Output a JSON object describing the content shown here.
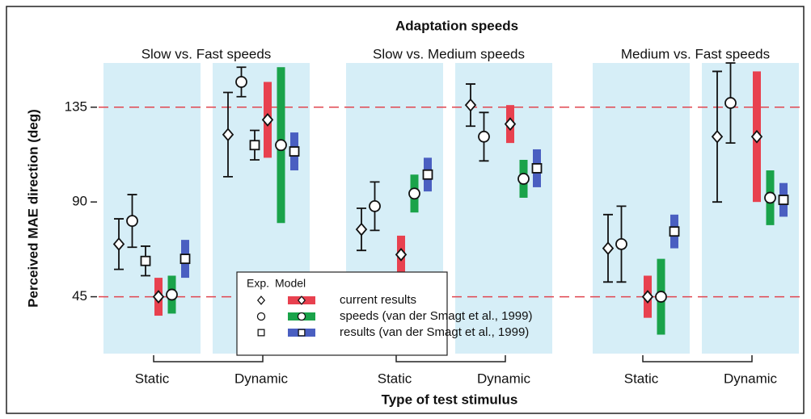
{
  "chart_data": {
    "type": "dot-range",
    "title": "Adaptation speeds",
    "groups": [
      "Slow vs. Fast speeds",
      "Slow vs. Medium speeds",
      "Medium vs. Fast speeds"
    ],
    "conditions": [
      "Static",
      "Dynamic"
    ],
    "y_label": "Perceived MAE direction (deg)",
    "x_label": "Type of test stimulus",
    "ylim": [
      18,
      156
    ],
    "yticks": [
      45,
      90,
      135
    ],
    "reference_lines": [
      45,
      135
    ],
    "reference_color": "#e0454f",
    "panel_color": "#d6eef7",
    "legend_headers": [
      "Exp.",
      "Model"
    ],
    "series": [
      {
        "name": "current results",
        "marker": "diamond",
        "color": "#e8414f",
        "exp": {
          "values": [
            70,
            122,
            77,
            136,
            68,
            121
          ],
          "errors": [
            12,
            20,
            10,
            10,
            16,
            31
          ]
        },
        "model": {
          "values": [
            45,
            129,
            65,
            127,
            45,
            121
          ],
          "errors": [
            9,
            18,
            9,
            9,
            10,
            31
          ]
        }
      },
      {
        "name": "speeds (van der Smagt et al., 1999)",
        "marker": "circle",
        "color": "#1aa34a",
        "exp": {
          "values": [
            81,
            147,
            88,
            121,
            70,
            137
          ],
          "errors": [
            12.5,
            7,
            11.5,
            11.5,
            18,
            19
          ]
        },
        "model": {
          "values": [
            46,
            117,
            94,
            101,
            45,
            92
          ],
          "errors": [
            9,
            37,
            9,
            9,
            18,
            13
          ]
        }
      },
      {
        "name": "results (van der Smagt et al., 1999)",
        "marker": "square",
        "color": "#4a5fc1",
        "exp": {
          "values": [
            62,
            117,
            null,
            null,
            null,
            null
          ],
          "errors": [
            7,
            7,
            null,
            null,
            null,
            null
          ]
        },
        "model": {
          "values": [
            63,
            114,
            103,
            106,
            76,
            91
          ],
          "errors": [
            9,
            9,
            8,
            9,
            8,
            8
          ]
        }
      }
    ]
  }
}
